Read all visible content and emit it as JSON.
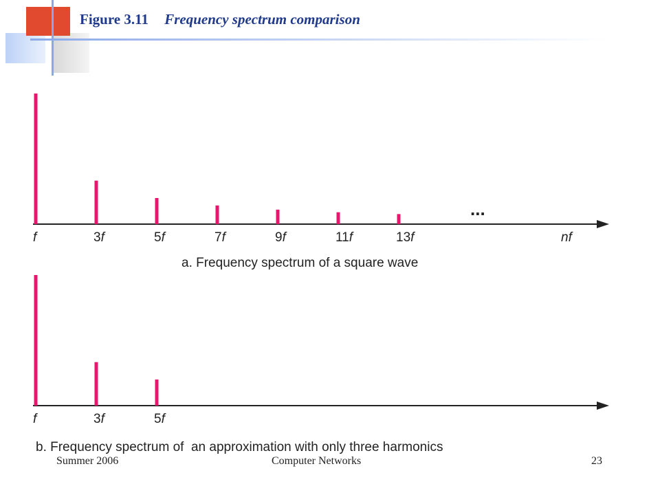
{
  "title": {
    "figure_number": "Figure 3.11",
    "figure_title": "Frequency spectrum comparison"
  },
  "footer": {
    "left": "Summer 2006",
    "center": "Computer Networks",
    "right": "23"
  },
  "colors": {
    "bar": "#e8176e",
    "axis": "#222222",
    "title": "#1f3a8a"
  },
  "chart_data": [
    {
      "type": "bar",
      "caption": "a. Frequency spectrum of a square wave",
      "categories": [
        "f",
        "3f",
        "5f",
        "7f",
        "9f",
        "11f",
        "13f",
        "nf"
      ],
      "values": [
        1.0,
        0.333,
        0.2,
        0.143,
        0.111,
        0.091,
        0.077,
        null
      ],
      "continuation": "...",
      "ylim": [
        0,
        1
      ]
    },
    {
      "type": "bar",
      "caption": "b. Frequency spectrum of  an approximation with only three harmonics",
      "categories": [
        "f",
        "3f",
        "5f"
      ],
      "values": [
        1.0,
        0.333,
        0.2
      ],
      "ylim": [
        0,
        1
      ]
    }
  ]
}
